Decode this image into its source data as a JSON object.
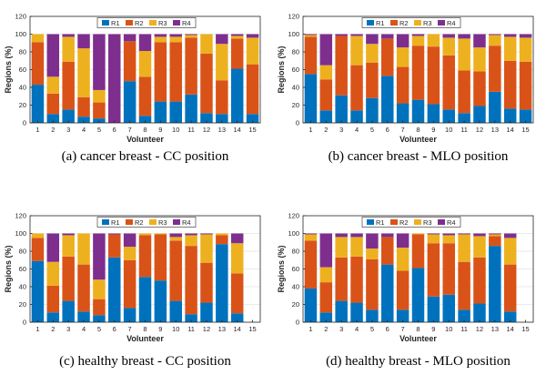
{
  "figure": {
    "legend_labels": [
      "R1",
      "R2",
      "R3",
      "R4"
    ],
    "colors": {
      "R1": "#0072BD",
      "R2": "#D95319",
      "R3": "#EDB120",
      "R4": "#7E2F8E"
    }
  },
  "chart_data": [
    {
      "type": "bar",
      "stacked": true,
      "panel": "a",
      "caption": "(a)  cancer breast - CC position",
      "xlabel": "Volunteer",
      "ylabel": "Regions (%)",
      "ylim": [
        0,
        120
      ],
      "yticks": [
        0,
        20,
        40,
        60,
        80,
        100,
        120
      ],
      "categories": [
        "1",
        "2",
        "3",
        "4",
        "5",
        "6",
        "7",
        "8",
        "9",
        "10",
        "11",
        "12",
        "13",
        "14",
        "15"
      ],
      "series": [
        {
          "name": "R1",
          "values": [
            43,
            10,
            15,
            7,
            5,
            0,
            47,
            8,
            24,
            24,
            32,
            11,
            10,
            61,
            10
          ]
        },
        {
          "name": "R2",
          "values": [
            48,
            23,
            54,
            22,
            18,
            0,
            45,
            44,
            67,
            67,
            64,
            67,
            38,
            34,
            56
          ]
        },
        {
          "name": "R3",
          "values": [
            9,
            19,
            28,
            55,
            14,
            0,
            0,
            29,
            6,
            6,
            3,
            22,
            41,
            3,
            30
          ]
        },
        {
          "name": "R4",
          "values": [
            0,
            48,
            3,
            16,
            63,
            100,
            8,
            19,
            3,
            3,
            1,
            0,
            11,
            2,
            4
          ]
        }
      ]
    },
    {
      "type": "bar",
      "stacked": true,
      "panel": "b",
      "caption": "(b)  cancer breast - MLO position",
      "xlabel": "Volunteer",
      "ylabel": "Regions (%)",
      "ylim": [
        0,
        120
      ],
      "yticks": [
        0,
        20,
        40,
        60,
        80,
        100,
        120
      ],
      "categories": [
        "1",
        "2",
        "3",
        "4",
        "5",
        "6",
        "7",
        "8",
        "9",
        "10",
        "11",
        "12",
        "13",
        "14",
        "15"
      ],
      "series": [
        {
          "name": "R1",
          "values": [
            55,
            14,
            31,
            14,
            28,
            53,
            22,
            26,
            21,
            15,
            11,
            19,
            35,
            16,
            15
          ]
        },
        {
          "name": "R2",
          "values": [
            42,
            35,
            67,
            51,
            40,
            42,
            41,
            61,
            65,
            61,
            48,
            39,
            52,
            54,
            54
          ]
        },
        {
          "name": "R3",
          "values": [
            2,
            16,
            0,
            33,
            21,
            0,
            22,
            11,
            14,
            20,
            36,
            27,
            12,
            27,
            27
          ]
        },
        {
          "name": "R4",
          "values": [
            1,
            35,
            2,
            2,
            11,
            5,
            15,
            2,
            0,
            4,
            5,
            15,
            1,
            3,
            4
          ]
        }
      ]
    },
    {
      "type": "bar",
      "stacked": true,
      "panel": "c",
      "caption": "(c)  healthy breast - CC position",
      "xlabel": "Volunteer",
      "ylabel": "Regions (%)",
      "ylim": [
        0,
        120
      ],
      "yticks": [
        0,
        20,
        40,
        60,
        80,
        100,
        120
      ],
      "categories": [
        "1",
        "2",
        "3",
        "4",
        "5",
        "6",
        "7",
        "8",
        "9",
        "10",
        "11",
        "12",
        "13",
        "14",
        "15"
      ],
      "series": [
        {
          "name": "R1",
          "values": [
            69,
            11,
            24,
            12,
            8,
            73,
            16,
            51,
            47,
            24,
            9,
            22,
            88,
            10,
            0
          ]
        },
        {
          "name": "R2",
          "values": [
            26,
            30,
            50,
            53,
            18,
            26,
            54,
            47,
            52,
            68,
            77,
            45,
            10,
            45,
            0
          ]
        },
        {
          "name": "R3",
          "values": [
            5,
            27,
            24,
            35,
            22,
            0,
            15,
            2,
            1,
            4,
            12,
            32,
            2,
            34,
            0
          ]
        },
        {
          "name": "R4",
          "values": [
            0,
            32,
            2,
            0,
            52,
            1,
            15,
            0,
            0,
            4,
            2,
            1,
            0,
            11,
            0
          ]
        }
      ]
    },
    {
      "type": "bar",
      "stacked": true,
      "panel": "d",
      "caption": "(d)  healthy breast - MLO position",
      "xlabel": "Volunteer",
      "ylabel": "Regions (%)",
      "ylim": [
        0,
        120
      ],
      "yticks": [
        0,
        20,
        40,
        60,
        80,
        100,
        120
      ],
      "categories": [
        "1",
        "2",
        "3",
        "4",
        "5",
        "6",
        "7",
        "8",
        "9",
        "10",
        "11",
        "12",
        "13",
        "14",
        "15"
      ],
      "series": [
        {
          "name": "R1",
          "values": [
            38,
            11,
            24,
            22,
            14,
            65,
            14,
            61,
            29,
            31,
            14,
            21,
            86,
            12,
            0
          ]
        },
        {
          "name": "R2",
          "values": [
            54,
            34,
            49,
            52,
            57,
            31,
            44,
            38,
            60,
            58,
            54,
            52,
            11,
            53,
            0
          ]
        },
        {
          "name": "R3",
          "values": [
            7,
            17,
            23,
            22,
            12,
            0,
            26,
            1,
            10,
            9,
            31,
            24,
            2,
            30,
            0
          ]
        },
        {
          "name": "R4",
          "values": [
            1,
            38,
            4,
            4,
            17,
            4,
            16,
            0,
            1,
            2,
            1,
            3,
            1,
            5,
            0
          ]
        }
      ]
    }
  ]
}
